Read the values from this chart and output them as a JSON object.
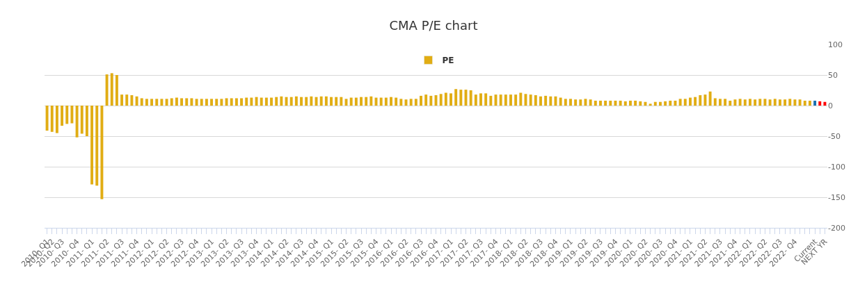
{
  "chart_data": {
    "type": "bar",
    "title": "CMA P/E chart",
    "categories": [
      "2010- Q1",
      "2010- Q2",
      null,
      "2010- Q3",
      null,
      null,
      "2010- Q4",
      null,
      null,
      "2011- Q1",
      null,
      null,
      "2011- Q2",
      null,
      null,
      "2011- Q3",
      null,
      null,
      "2011- Q4",
      null,
      null,
      "2012- Q1",
      null,
      null,
      "2012- Q2",
      null,
      null,
      "2012- Q3",
      null,
      null,
      "2012- Q4",
      null,
      null,
      "2013- Q1",
      null,
      null,
      "2013- Q2",
      null,
      null,
      "2013- Q3",
      null,
      null,
      "2013- Q4",
      null,
      null,
      "2014- Q1",
      null,
      null,
      "2014- Q2",
      null,
      null,
      "2014- Q3",
      null,
      null,
      "2014- Q4",
      null,
      null,
      "2015- Q1",
      null,
      null,
      "2015- Q2",
      null,
      null,
      "2015- Q3",
      null,
      null,
      "2015- Q4",
      null,
      null,
      "2016- Q1",
      null,
      null,
      "2016- Q2",
      null,
      null,
      "2016- Q3",
      null,
      null,
      "2016- Q4",
      null,
      null,
      "2017- Q1",
      null,
      null,
      "2017- Q2",
      null,
      null,
      "2017- Q3",
      null,
      null,
      "2017- Q4",
      null,
      null,
      "2018- Q1",
      null,
      null,
      "2018- Q2",
      null,
      null,
      "2018- Q3",
      null,
      null,
      "2018- Q4",
      null,
      null,
      "2019- Q1",
      null,
      null,
      "2019- Q2",
      null,
      null,
      "2019- Q3",
      null,
      null,
      "2019- Q4",
      null,
      null,
      "2020- Q1",
      null,
      null,
      "2020- Q2",
      null,
      null,
      "2020- Q3",
      null,
      null,
      "2020- Q4",
      null,
      null,
      "2021- Q1",
      null,
      null,
      "2021- Q2",
      null,
      null,
      "2021- Q3",
      null,
      null,
      "2021- Q4",
      null,
      null,
      "2022- Q1",
      null,
      null,
      "2022- Q2",
      null,
      null,
      "2022- Q3",
      null,
      null,
      "2022- Q4",
      null,
      null,
      null,
      "Current",
      null,
      "NEXT YR"
    ],
    "series": [
      {
        "name": "PE",
        "color": "#e1ad14",
        "values": [
          -41,
          -43,
          -45,
          -33,
          -30,
          -29,
          -52,
          -46,
          -50,
          -129,
          -131,
          -153,
          51,
          53,
          50,
          18,
          18,
          17,
          15,
          12,
          11,
          11,
          11,
          11,
          11,
          12,
          13,
          12,
          12,
          12,
          11,
          11,
          11,
          11,
          11,
          11,
          12,
          12,
          12,
          12,
          13,
          13,
          14,
          13,
          13,
          13,
          14,
          15,
          14,
          14,
          15,
          14,
          14,
          15,
          14,
          15,
          15,
          14,
          14,
          14,
          11,
          13,
          13,
          14,
          14,
          15,
          13,
          13,
          13,
          14,
          13,
          11,
          10,
          11,
          11,
          16,
          18,
          16,
          17,
          19,
          21,
          20,
          27,
          26,
          26,
          25,
          18,
          20,
          20,
          16,
          18,
          18,
          18,
          18,
          18,
          21,
          19,
          18,
          17,
          15,
          16,
          15,
          15,
          13,
          11,
          11,
          10,
          10,
          11,
          10,
          8,
          8,
          8,
          8,
          8,
          8,
          7,
          8,
          8,
          7,
          6,
          3,
          6,
          6,
          7,
          8,
          8,
          11,
          11,
          13,
          14,
          17,
          18,
          23,
          12,
          11,
          11,
          8,
          10,
          11,
          10,
          11,
          10,
          11,
          11,
          10,
          11,
          10,
          10,
          11,
          10,
          10,
          8,
          8,
          8,
          7,
          6
        ],
        "colors": [
          "#e1ad14",
          "#e1ad14",
          "#e1ad14",
          "#e1ad14",
          "#e1ad14",
          "#e1ad14",
          "#e1ad14",
          "#e1ad14",
          "#e1ad14",
          "#e1ad14",
          "#e1ad14",
          "#e1ad14",
          "#e1ad14",
          "#e1ad14",
          "#e1ad14",
          "#e1ad14",
          "#e1ad14",
          "#e1ad14",
          "#e1ad14",
          "#e1ad14",
          "#e1ad14",
          "#e1ad14",
          "#e1ad14",
          "#e1ad14",
          "#e1ad14",
          "#e1ad14",
          "#e1ad14",
          "#e1ad14",
          "#e1ad14",
          "#e1ad14",
          "#e1ad14",
          "#e1ad14",
          "#e1ad14",
          "#e1ad14",
          "#e1ad14",
          "#e1ad14",
          "#e1ad14",
          "#e1ad14",
          "#e1ad14",
          "#e1ad14",
          "#e1ad14",
          "#e1ad14",
          "#e1ad14",
          "#e1ad14",
          "#e1ad14",
          "#e1ad14",
          "#e1ad14",
          "#e1ad14",
          "#e1ad14",
          "#e1ad14",
          "#e1ad14",
          "#e1ad14",
          "#e1ad14",
          "#e1ad14",
          "#e1ad14",
          "#e1ad14",
          "#e1ad14",
          "#e1ad14",
          "#e1ad14",
          "#e1ad14",
          "#e1ad14",
          "#e1ad14",
          "#e1ad14",
          "#e1ad14",
          "#e1ad14",
          "#e1ad14",
          "#e1ad14",
          "#e1ad14",
          "#e1ad14",
          "#e1ad14",
          "#e1ad14",
          "#e1ad14",
          "#e1ad14",
          "#e1ad14",
          "#e1ad14",
          "#e1ad14",
          "#e1ad14",
          "#e1ad14",
          "#e1ad14",
          "#e1ad14",
          "#e1ad14",
          "#e1ad14",
          "#e1ad14",
          "#e1ad14",
          "#e1ad14",
          "#e1ad14",
          "#e1ad14",
          "#e1ad14",
          "#e1ad14",
          "#e1ad14",
          "#e1ad14",
          "#e1ad14",
          "#e1ad14",
          "#e1ad14",
          "#e1ad14",
          "#e1ad14",
          "#e1ad14",
          "#e1ad14",
          "#e1ad14",
          "#e1ad14",
          "#e1ad14",
          "#e1ad14",
          "#e1ad14",
          "#e1ad14",
          "#e1ad14",
          "#e1ad14",
          "#e1ad14",
          "#e1ad14",
          "#e1ad14",
          "#e1ad14",
          "#e1ad14",
          "#e1ad14",
          "#e1ad14",
          "#e1ad14",
          "#e1ad14",
          "#e1ad14",
          "#e1ad14",
          "#e1ad14",
          "#e1ad14",
          "#e1ad14",
          "#e1ad14",
          "#e1ad14",
          "#e1ad14",
          "#e1ad14",
          "#e1ad14",
          "#e1ad14",
          "#e1ad14",
          "#e1ad14",
          "#e1ad14",
          "#e1ad14",
          "#e1ad14",
          "#e1ad14",
          "#e1ad14",
          "#e1ad14",
          "#e1ad14",
          "#e1ad14",
          "#e1ad14",
          "#e1ad14",
          "#e1ad14",
          "#e1ad14",
          "#e1ad14",
          "#e1ad14",
          "#e1ad14",
          "#e1ad14",
          "#e1ad14",
          "#e1ad14",
          "#e1ad14",
          "#e1ad14",
          "#e1ad14",
          "#e1ad14",
          "#e1ad14",
          "#e1ad14",
          "#e1ad14",
          "#e1ad14",
          "#1a6faf",
          "#ff0000",
          "#ff0000"
        ]
      }
    ],
    "ylim": [
      -200,
      100
    ],
    "yticks": [
      -200,
      -150,
      -100,
      -50,
      0,
      50,
      100
    ],
    "grid": "y",
    "legend": "top"
  }
}
